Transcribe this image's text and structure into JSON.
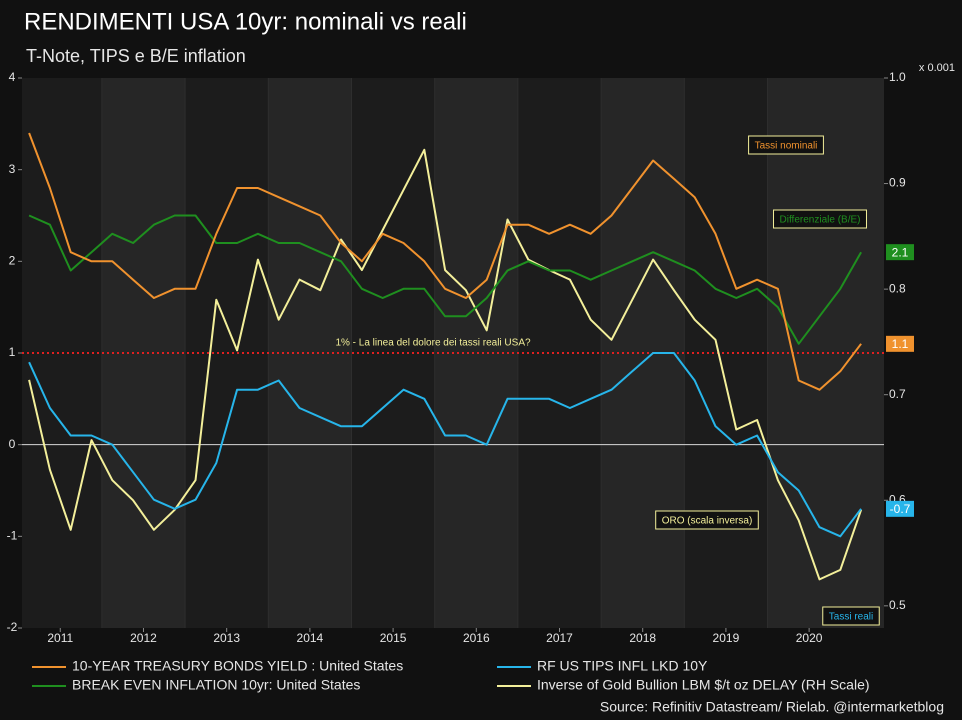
{
  "chart_data": {
    "type": "line",
    "title": "RENDIMENTI USA 10yr: nominali vs reali",
    "subtitle": "T-Note, TIPS e B/E inflation",
    "y2_unit": "x 0.001",
    "source": "Source: Refinitiv Datastream/ Rielab. @intermarketblog",
    "x": [
      2010.625,
      2010.875,
      2011.125,
      2011.375,
      2011.625,
      2011.875,
      2012.125,
      2012.375,
      2012.625,
      2012.875,
      2013.125,
      2013.375,
      2013.625,
      2013.875,
      2014.125,
      2014.375,
      2014.625,
      2014.875,
      2015.125,
      2015.375,
      2015.625,
      2015.875,
      2016.125,
      2016.375,
      2016.625,
      2016.875,
      2017.125,
      2017.375,
      2017.625,
      2017.875,
      2018.125,
      2018.375,
      2018.625,
      2018.875,
      2019.125,
      2019.375,
      2019.625,
      2019.875,
      2020.125,
      2020.375,
      2020.625
    ],
    "xlim": [
      2010.54,
      2020.9
    ],
    "xticks": [
      2011,
      2012,
      2013,
      2014,
      2015,
      2016,
      2017,
      2018,
      2019,
      2020
    ],
    "ylim": [
      -2,
      4
    ],
    "yticks": [
      -2,
      -1,
      0,
      1,
      2,
      3,
      4
    ],
    "y2lim": [
      0.479,
      1.0
    ],
    "y2ticks": [
      0.5,
      0.6,
      0.7,
      0.8,
      0.9,
      {
        "value": 1.0,
        "label": "1.0"
      }
    ],
    "reference_line": {
      "value": 1,
      "label": "1% - La linea del dolore dei tassi reali USA?",
      "color": "#e02020"
    },
    "series": [
      {
        "name": "10-YEAR TREASURY BONDS YIELD : United States",
        "color": "#f0922e",
        "end_label": true,
        "values": [
          3.4,
          2.8,
          2.1,
          2.0,
          2.0,
          1.8,
          1.6,
          1.7,
          1.7,
          2.3,
          2.8,
          2.8,
          2.7,
          2.6,
          2.5,
          2.2,
          2.0,
          2.3,
          2.2,
          2.0,
          1.7,
          1.6,
          1.8,
          2.4,
          2.4,
          2.3,
          2.4,
          2.3,
          2.5,
          2.8,
          3.1,
          2.9,
          2.7,
          2.3,
          1.7,
          1.8,
          1.7,
          0.7,
          0.6,
          0.8,
          1.1
        ]
      },
      {
        "name": "RF US TIPS INFL LKD 10Y",
        "color": "#27b5ea",
        "end_label": true,
        "values": [
          0.9,
          0.4,
          0.1,
          0.1,
          0.0,
          -0.3,
          -0.6,
          -0.7,
          -0.6,
          -0.2,
          0.6,
          0.6,
          0.7,
          0.4,
          0.3,
          0.2,
          0.2,
          0.4,
          0.6,
          0.5,
          0.1,
          0.1,
          0.0,
          0.5,
          0.5,
          0.5,
          0.4,
          0.5,
          0.6,
          0.8,
          1.0,
          1.0,
          0.7,
          0.2,
          0.0,
          0.1,
          -0.3,
          -0.5,
          -0.9,
          -1.0,
          -0.7
        ]
      },
      {
        "name": "BREAK EVEN INFLATION 10yr: United States",
        "color": "#1f8f1f",
        "end_label": true,
        "values": [
          2.5,
          2.4,
          1.9,
          2.1,
          2.3,
          2.2,
          2.4,
          2.5,
          2.5,
          2.2,
          2.2,
          2.3,
          2.2,
          2.2,
          2.1,
          2.0,
          1.7,
          1.6,
          1.7,
          1.7,
          1.4,
          1.4,
          1.6,
          1.9,
          2.0,
          1.9,
          1.9,
          1.8,
          1.9,
          2.0,
          2.1,
          2.0,
          1.9,
          1.7,
          1.6,
          1.7,
          1.5,
          1.1,
          1.4,
          1.7,
          2.1
        ]
      },
      {
        "name": "Inverse of Gold Bullion LBM $/t oz DELAY (RH Scale)",
        "color": "#f3ef9a",
        "axis": "y2",
        "end_label": false,
        "values": [
          0.714,
          0.629,
          0.572,
          0.657,
          0.619,
          0.6,
          0.572,
          0.591,
          0.619,
          0.79,
          0.742,
          0.828,
          0.771,
          0.809,
          0.799,
          0.847,
          0.818,
          0.856,
          0.894,
          0.932,
          0.818,
          0.799,
          0.761,
          0.866,
          0.828,
          0.818,
          0.809,
          0.771,
          0.752,
          0.79,
          0.828,
          0.799,
          0.771,
          0.752,
          0.667,
          0.676,
          0.619,
          0.581,
          0.525,
          0.534,
          0.591
        ]
      }
    ],
    "annotations": [
      {
        "text": "Tassi nominali",
        "color": "#f0922e"
      },
      {
        "text": "Differenziale (B/E)",
        "color": "#1f8f1f"
      },
      {
        "text": "ORO (scala inversa)",
        "color": "#f3ef9a"
      },
      {
        "text": "Tassi reali",
        "color": "#27b5ea"
      }
    ]
  }
}
